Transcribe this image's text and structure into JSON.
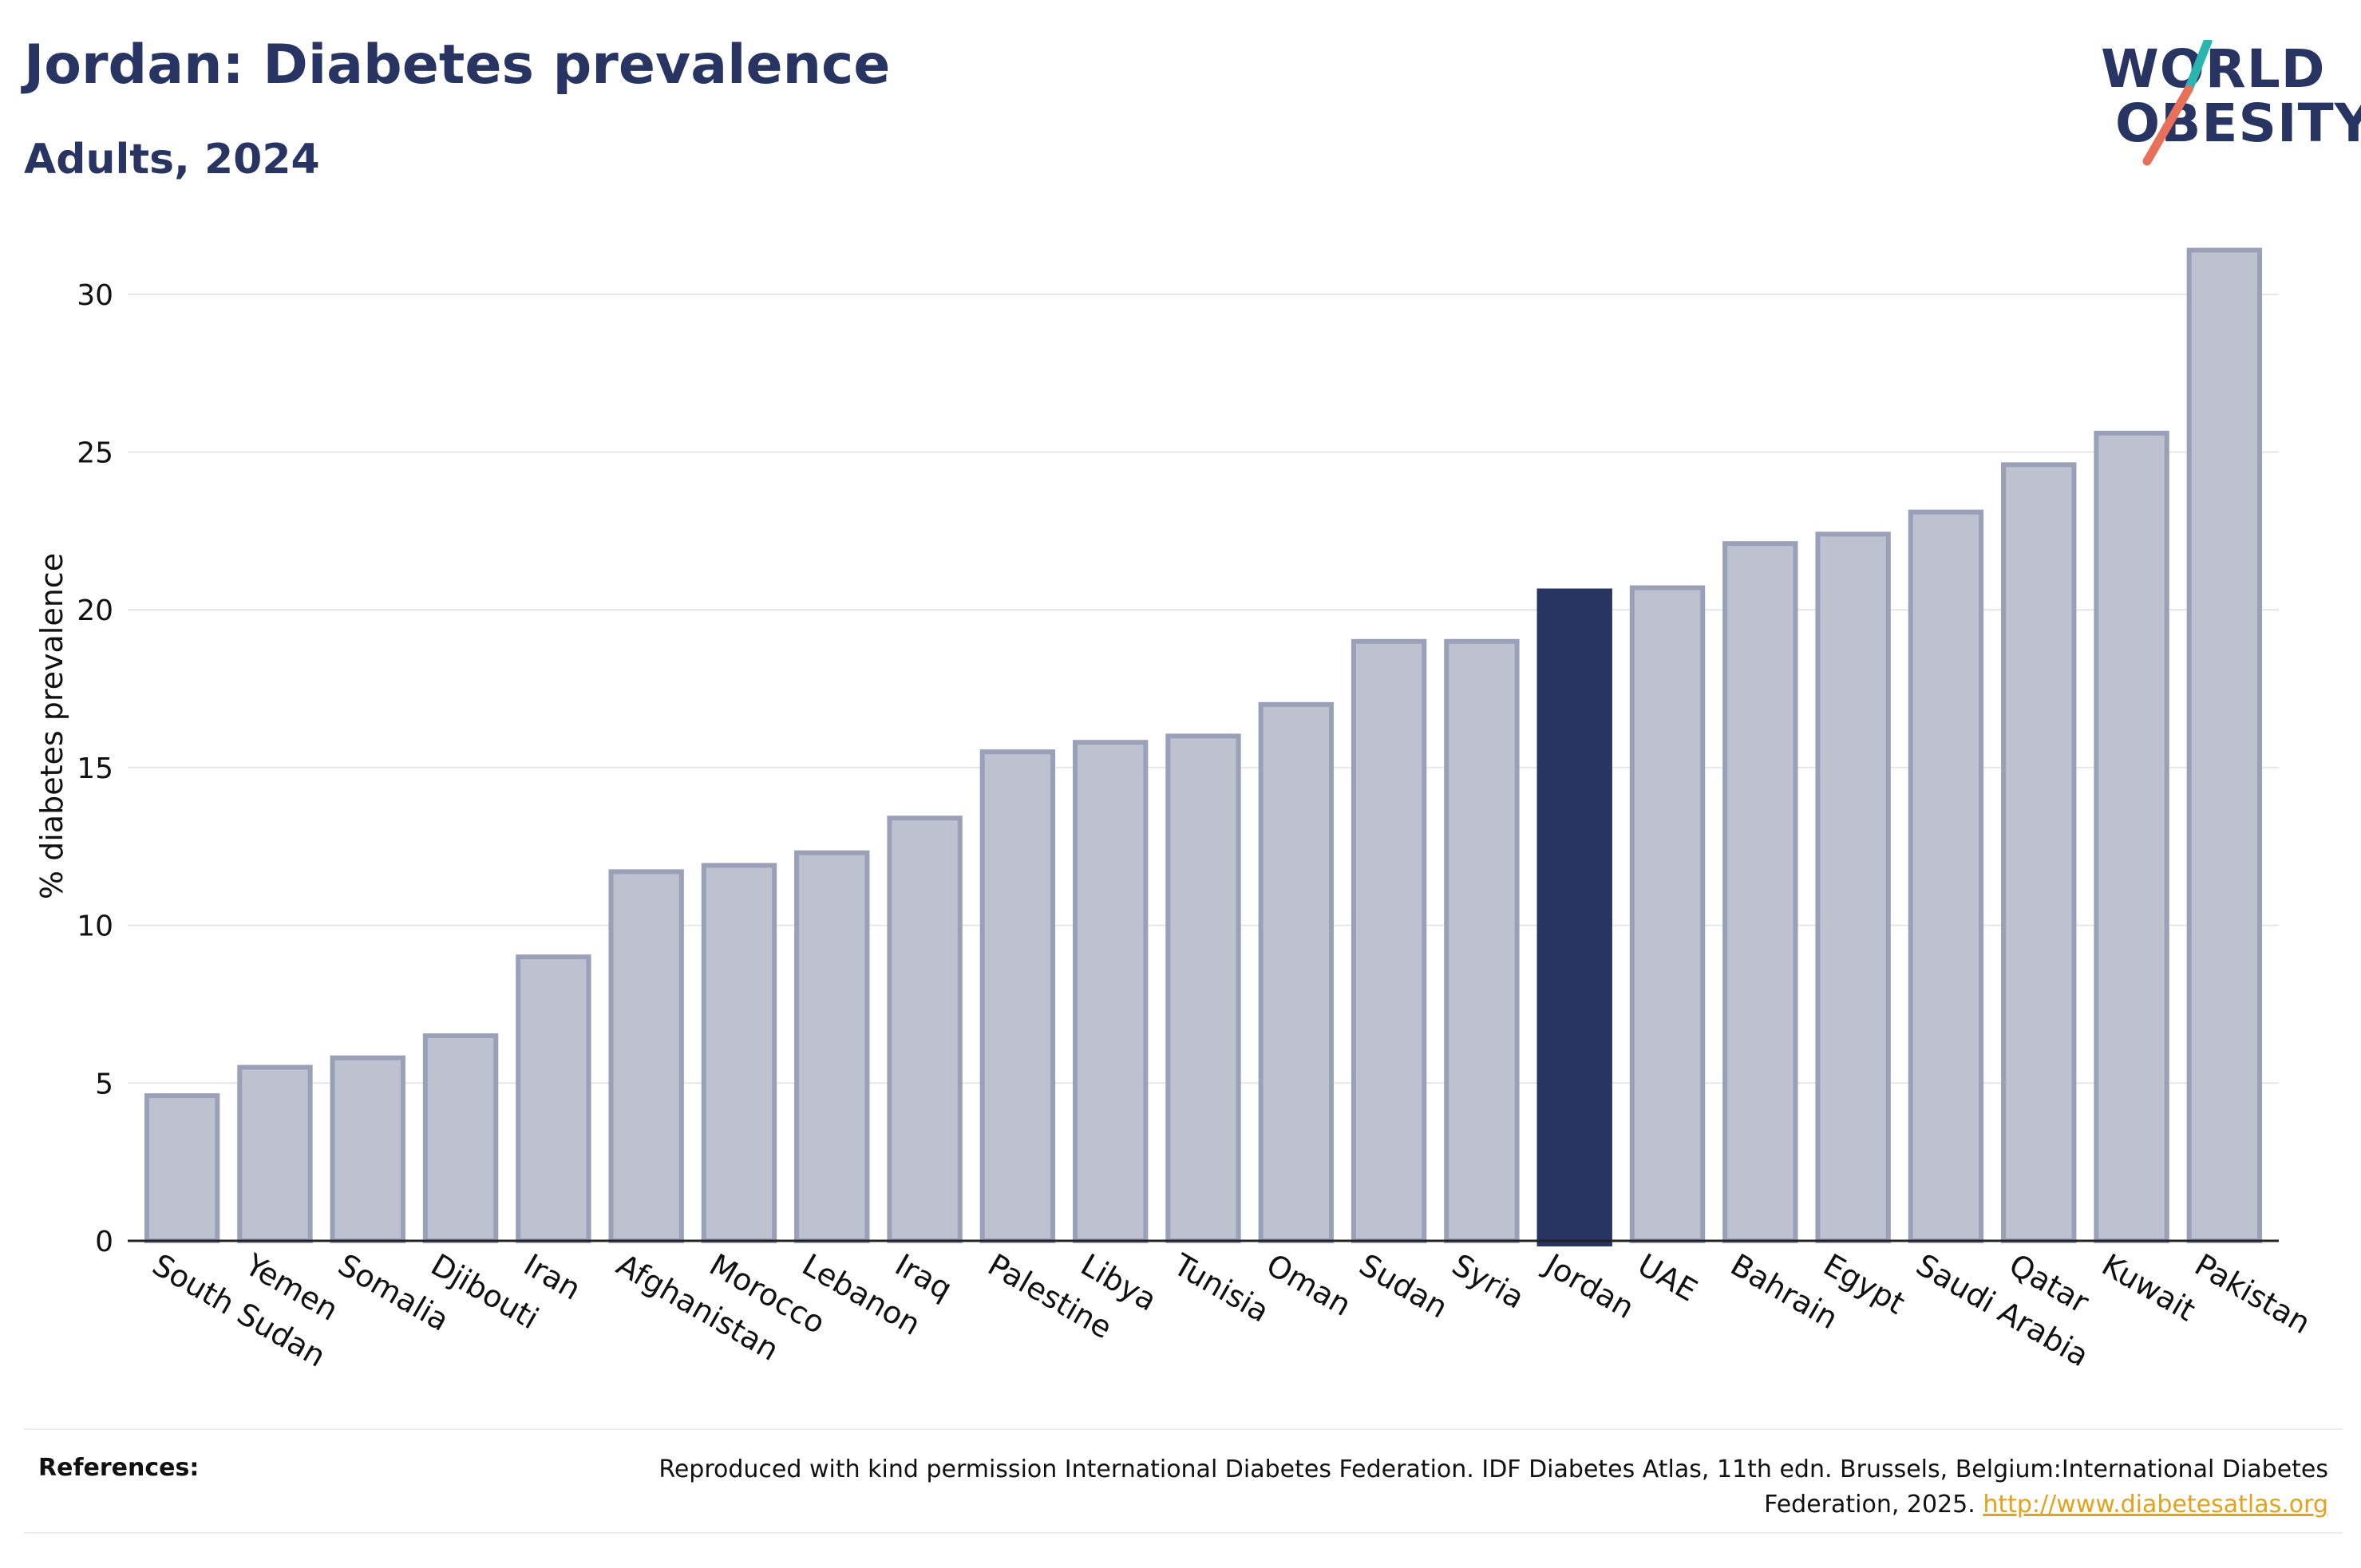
{
  "header": {
    "title": "Jordan: Diabetes prevalence",
    "subtitle": "Adults, 2024"
  },
  "logo": {
    "line1": "WORLD",
    "line2": "OBESITY",
    "slash_colors": [
      "#2bb5b0",
      "#e8705a"
    ]
  },
  "colors": {
    "highlight_bar": "#283562",
    "bar_fill": "#bec1cf",
    "bar_stroke": "#9aa0b8",
    "grid": "#e6e6e6"
  },
  "chart_data": {
    "type": "bar",
    "title": "Jordan: Diabetes prevalence",
    "subtitle": "Adults, 2024",
    "xlabel": "",
    "ylabel": "% diabetes prevalence",
    "ylim": [
      0,
      32.5
    ],
    "yticks": [
      0,
      5,
      10,
      15,
      20,
      25,
      30
    ],
    "grid": true,
    "highlight": "Jordan",
    "categories": [
      "South Sudan",
      "Yemen",
      "Somalia",
      "Djibouti",
      "Iran",
      "Afghanistan",
      "Morocco",
      "Lebanon",
      "Iraq",
      "Palestine",
      "Libya",
      "Tunisia",
      "Oman",
      "Sudan",
      "Syria",
      "Jordan",
      "UAE",
      "Bahrain",
      "Egypt",
      "Saudi Arabia",
      "Qatar",
      "Kuwait",
      "Pakistan"
    ],
    "values": [
      4.6,
      5.5,
      5.8,
      6.5,
      9.0,
      11.7,
      11.9,
      12.3,
      13.4,
      15.5,
      15.8,
      16.0,
      17.0,
      19.0,
      19.0,
      20.6,
      20.7,
      22.1,
      22.4,
      23.1,
      24.6,
      25.6,
      31.4
    ]
  },
  "references": {
    "label": "References:",
    "text": "Reproduced with kind permission International Diabetes Federation. IDF Diabetes Atlas, 11th edn. Brussels, Belgium:International Diabetes Federation, 2025.",
    "link": "http://www.diabetesatlas.org"
  }
}
